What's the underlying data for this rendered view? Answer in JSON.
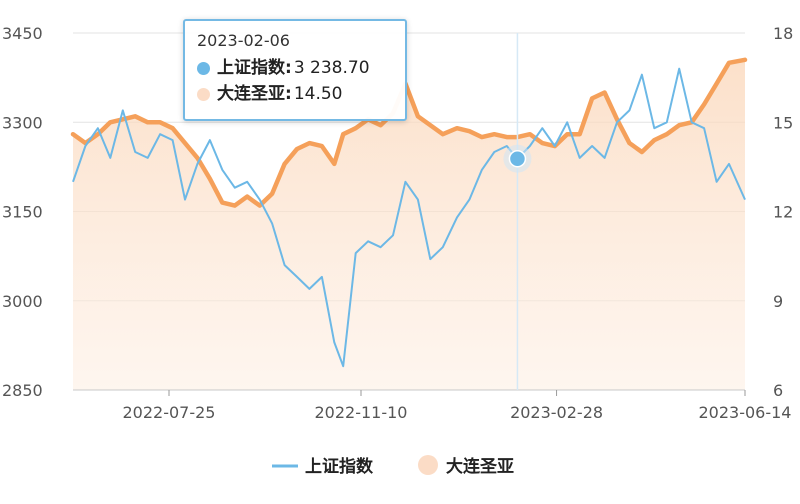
{
  "chart_data": {
    "type": "line",
    "x_labels": [
      "2022-07-25",
      "2022-11-10",
      "2023-02-28",
      "2023-06-14"
    ],
    "x_range": [
      "2022-06-01",
      "2023-06-14"
    ],
    "y_left": {
      "ticks": [
        2850,
        3000,
        3150,
        3300,
        3450
      ],
      "range": [
        2850,
        3450
      ]
    },
    "y_right": {
      "ticks": [
        6,
        9,
        12,
        15,
        18
      ],
      "range": [
        6,
        18
      ]
    },
    "grid": true,
    "legend_position": "bottom-center",
    "series": [
      {
        "name": "上证指数",
        "axis": "left",
        "style": "line",
        "color": "#6cb8e6",
        "points": [
          [
            "2022-06-01",
            3200
          ],
          [
            "2022-06-08",
            3260
          ],
          [
            "2022-06-15",
            3290
          ],
          [
            "2022-06-22",
            3240
          ],
          [
            "2022-06-29",
            3320
          ],
          [
            "2022-07-06",
            3250
          ],
          [
            "2022-07-13",
            3240
          ],
          [
            "2022-07-20",
            3280
          ],
          [
            "2022-07-27",
            3270
          ],
          [
            "2022-08-03",
            3170
          ],
          [
            "2022-08-10",
            3230
          ],
          [
            "2022-08-17",
            3270
          ],
          [
            "2022-08-24",
            3220
          ],
          [
            "2022-08-31",
            3190
          ],
          [
            "2022-09-07",
            3200
          ],
          [
            "2022-09-14",
            3170
          ],
          [
            "2022-09-21",
            3130
          ],
          [
            "2022-09-28",
            3060
          ],
          [
            "2022-10-05",
            3040
          ],
          [
            "2022-10-12",
            3020
          ],
          [
            "2022-10-19",
            3040
          ],
          [
            "2022-10-26",
            2930
          ],
          [
            "2022-10-31",
            2890
          ],
          [
            "2022-11-07",
            3080
          ],
          [
            "2022-11-14",
            3100
          ],
          [
            "2022-11-21",
            3090
          ],
          [
            "2022-11-28",
            3110
          ],
          [
            "2022-12-05",
            3200
          ],
          [
            "2022-12-12",
            3170
          ],
          [
            "2022-12-19",
            3070
          ],
          [
            "2022-12-26",
            3090
          ],
          [
            "2023-01-03",
            3140
          ],
          [
            "2023-01-10",
            3170
          ],
          [
            "2023-01-17",
            3220
          ],
          [
            "2023-01-24",
            3250
          ],
          [
            "2023-01-31",
            3260
          ],
          [
            "2023-02-06",
            3238.7
          ],
          [
            "2023-02-13",
            3260
          ],
          [
            "2023-02-20",
            3290
          ],
          [
            "2023-02-27",
            3260
          ],
          [
            "2023-03-06",
            3300
          ],
          [
            "2023-03-13",
            3240
          ],
          [
            "2023-03-20",
            3260
          ],
          [
            "2023-03-27",
            3240
          ],
          [
            "2023-04-03",
            3300
          ],
          [
            "2023-04-10",
            3320
          ],
          [
            "2023-04-17",
            3380
          ],
          [
            "2023-04-24",
            3290
          ],
          [
            "2023-05-01",
            3300
          ],
          [
            "2023-05-08",
            3390
          ],
          [
            "2023-05-15",
            3300
          ],
          [
            "2023-05-22",
            3290
          ],
          [
            "2023-05-29",
            3200
          ],
          [
            "2023-06-05",
            3230
          ],
          [
            "2023-06-14",
            3170
          ]
        ]
      },
      {
        "name": "大连圣亚",
        "axis": "right",
        "style": "area",
        "color": "#f5a05a",
        "points": [
          [
            "2022-06-01",
            14.6
          ],
          [
            "2022-06-08",
            14.3
          ],
          [
            "2022-06-15",
            14.6
          ],
          [
            "2022-06-22",
            15.0
          ],
          [
            "2022-06-29",
            15.1
          ],
          [
            "2022-07-06",
            15.2
          ],
          [
            "2022-07-13",
            15.0
          ],
          [
            "2022-07-20",
            15.0
          ],
          [
            "2022-07-27",
            14.8
          ],
          [
            "2022-08-03",
            14.3
          ],
          [
            "2022-08-10",
            13.8
          ],
          [
            "2022-08-17",
            13.1
          ],
          [
            "2022-08-24",
            12.3
          ],
          [
            "2022-08-31",
            12.2
          ],
          [
            "2022-09-07",
            12.5
          ],
          [
            "2022-09-14",
            12.2
          ],
          [
            "2022-09-21",
            12.6
          ],
          [
            "2022-09-28",
            13.6
          ],
          [
            "2022-10-05",
            14.1
          ],
          [
            "2022-10-12",
            14.3
          ],
          [
            "2022-10-19",
            14.2
          ],
          [
            "2022-10-26",
            13.6
          ],
          [
            "2022-10-31",
            14.6
          ],
          [
            "2022-11-07",
            14.8
          ],
          [
            "2022-11-14",
            15.1
          ],
          [
            "2022-11-21",
            14.9
          ],
          [
            "2022-11-28",
            15.3
          ],
          [
            "2022-12-05",
            16.3
          ],
          [
            "2022-12-12",
            15.2
          ],
          [
            "2022-12-19",
            14.9
          ],
          [
            "2022-12-26",
            14.6
          ],
          [
            "2023-01-03",
            14.8
          ],
          [
            "2023-01-10",
            14.7
          ],
          [
            "2023-01-17",
            14.5
          ],
          [
            "2023-01-24",
            14.6
          ],
          [
            "2023-01-31",
            14.5
          ],
          [
            "2023-02-06",
            14.5
          ],
          [
            "2023-02-13",
            14.6
          ],
          [
            "2023-02-20",
            14.3
          ],
          [
            "2023-02-27",
            14.2
          ],
          [
            "2023-03-06",
            14.6
          ],
          [
            "2023-03-13",
            14.6
          ],
          [
            "2023-03-20",
            15.8
          ],
          [
            "2023-03-27",
            16.0
          ],
          [
            "2023-04-03",
            15.1
          ],
          [
            "2023-04-10",
            14.3
          ],
          [
            "2023-04-17",
            14.0
          ],
          [
            "2023-04-24",
            14.4
          ],
          [
            "2023-05-01",
            14.6
          ],
          [
            "2023-05-08",
            14.9
          ],
          [
            "2023-05-15",
            15.0
          ],
          [
            "2023-05-22",
            15.6
          ],
          [
            "2023-05-29",
            16.3
          ],
          [
            "2023-06-05",
            17.0
          ],
          [
            "2023-06-14",
            17.1
          ]
        ]
      }
    ],
    "hover": {
      "date": "2023-02-06",
      "rows": [
        {
          "name": "上证指数",
          "value": "3 238.70",
          "color": "#6cb8e6"
        },
        {
          "name": "大连圣亚",
          "value": "14.50",
          "color": "#fbdcc6"
        }
      ]
    },
    "legend": [
      {
        "name": "上证指数",
        "marker": "line",
        "color": "#6cb8e6"
      },
      {
        "name": "大连圣亚",
        "marker": "circle",
        "color": "#fbdcc6"
      }
    ]
  }
}
